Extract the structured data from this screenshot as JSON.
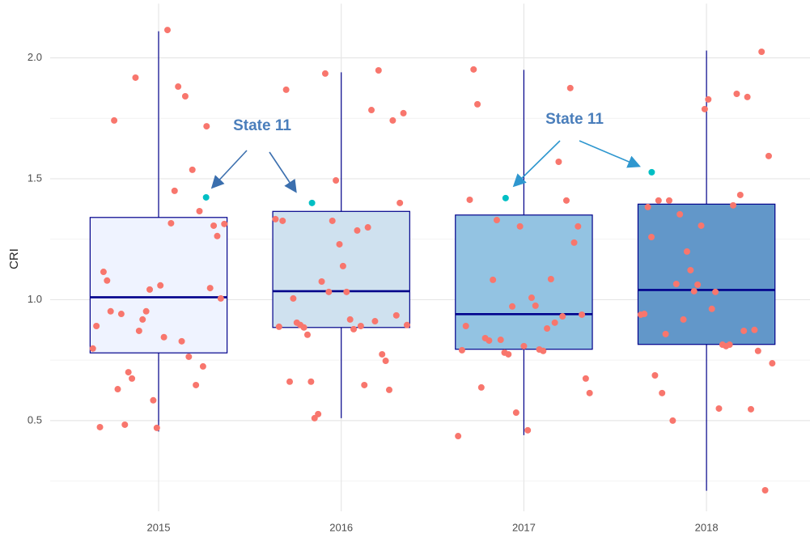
{
  "chart_data": {
    "type": "box",
    "y_label": "CRI",
    "categories": [
      "2015",
      "2016",
      "2017",
      "2018"
    ],
    "ylim": [
      0.125,
      2.224
    ],
    "yticks": [
      {
        "value": 0.5,
        "label": "0.5"
      },
      {
        "value": 1.0,
        "label": "1.0"
      },
      {
        "value": 1.5,
        "label": "1.5"
      },
      {
        "value": 2.0,
        "label": "2.0"
      }
    ],
    "minor_yticks": [
      0.25,
      0.75,
      1.25,
      1.75
    ],
    "grid": true,
    "box_colors": [
      "#eff3ff",
      "#cfe1ef",
      "#93c3e2",
      "#6297c9"
    ],
    "box_edge_color": "#00008b",
    "boxes": [
      {
        "low": 0.455,
        "q1": 0.78,
        "median": 1.01,
        "q3": 1.34,
        "high": 2.11
      },
      {
        "low": 0.51,
        "q1": 0.885,
        "median": 1.035,
        "q3": 1.365,
        "high": 1.94
      },
      {
        "low": 0.44,
        "q1": 0.795,
        "median": 0.94,
        "q3": 1.35,
        "high": 1.95
      },
      {
        "low": 0.21,
        "q1": 0.815,
        "median": 1.04,
        "q3": 1.395,
        "high": 2.03
      }
    ],
    "point_color": "#f8766d",
    "points": [
      [
        0.798,
        0.891,
        0.473,
        1.115,
        1.079,
        0.952,
        1.741,
        0.63,
        0.941,
        0.483,
        0.7,
        0.674,
        1.918,
        0.871,
        0.918,
        0.952,
        1.042,
        0.584,
        0.47,
        1.059,
        0.845,
        2.115,
        1.316,
        1.45,
        1.881,
        0.828,
        1.841,
        0.764,
        1.537,
        0.647,
        1.366,
        0.724,
        1.717,
        1.048,
        1.306,
        1.263,
        1.005,
        1.313
      ],
      [
        1.333,
        0.888,
        1.326,
        1.868,
        0.661,
        1.005,
        0.905,
        0.895,
        0.885,
        0.855,
        0.661,
        0.51,
        0.527,
        1.075,
        1.935,
        1.032,
        1.326,
        1.493,
        1.229,
        1.139,
        1.032,
        0.918,
        0.878,
        1.286,
        0.891,
        0.647,
        1.299,
        1.784,
        0.911,
        1.948,
        0.774,
        0.747,
        0.627,
        1.741,
        0.935,
        1.4,
        1.771,
        0.895
      ],
      [
        0.436,
        0.791,
        0.891,
        1.413,
        1.952,
        1.808,
        0.637,
        0.841,
        0.831,
        1.082,
        1.329,
        0.834,
        0.781,
        0.774,
        0.972,
        0.533,
        1.303,
        0.808,
        0.46,
        1.008,
        0.975,
        0.794,
        0.788,
        0.881,
        1.085,
        0.905,
        1.57,
        0.931,
        1.41,
        1.875,
        1.236,
        1.303,
        0.938,
        0.674,
        0.614
      ],
      [
        0.938,
        0.941,
        1.383,
        1.259,
        0.687,
        1.41,
        0.614,
        0.858,
        1.41,
        0.5,
        1.065,
        1.353,
        0.918,
        1.199,
        1.122,
        1.035,
        1.062,
        1.306,
        1.788,
        1.828,
        0.962,
        1.032,
        0.55,
        0.814,
        0.808,
        0.814,
        1.39,
        1.851,
        1.433,
        0.871,
        1.838,
        0.547,
        0.875,
        0.788,
        2.025,
        0.212,
        1.594,
        0.737
      ]
    ],
    "highlight_color": "#00bfc4",
    "highlight_values": [
      1.423,
      1.4,
      1.42,
      1.527
    ],
    "annotations": [
      "State 11",
      "State 11"
    ]
  }
}
